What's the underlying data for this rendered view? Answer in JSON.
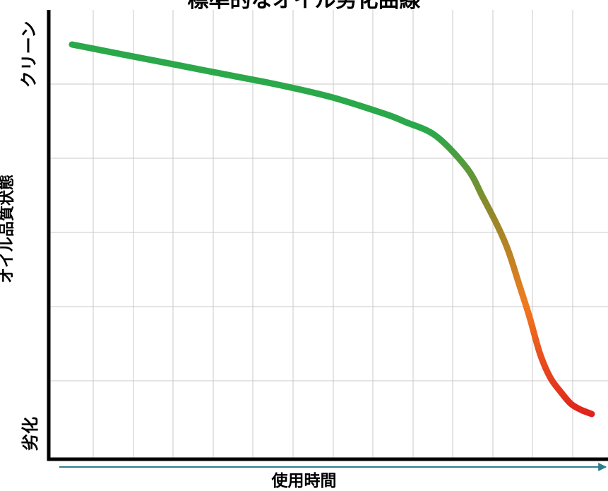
{
  "chart_data": {
    "type": "line",
    "title": "標準的なオイル劣化曲線",
    "xlabel": "使用時間",
    "ylabel": "オイル品質状態",
    "y_top_label": "クリーン",
    "y_bottom_label": "劣化",
    "ylim": [
      0,
      100
    ],
    "grid": true,
    "series": [
      {
        "x": [
          0,
          10,
          20,
          30,
          40,
          50,
          60,
          64,
          70,
          76,
          79,
          82,
          84,
          86,
          88,
          90,
          92,
          94,
          96,
          98,
          100
        ],
        "y": [
          91,
          88.5,
          86,
          83.5,
          81,
          78,
          74,
          72,
          68.5,
          60.5,
          53.5,
          46,
          40,
          32,
          24,
          15,
          9,
          5.5,
          2.5,
          1,
          0
        ]
      }
    ],
    "colors": {
      "clean": "#2aa84a",
      "mid": "#8a8a2a",
      "warn": "#f07b1f",
      "degraded": "#e0201c",
      "arrow": "#2e7d8c"
    }
  }
}
